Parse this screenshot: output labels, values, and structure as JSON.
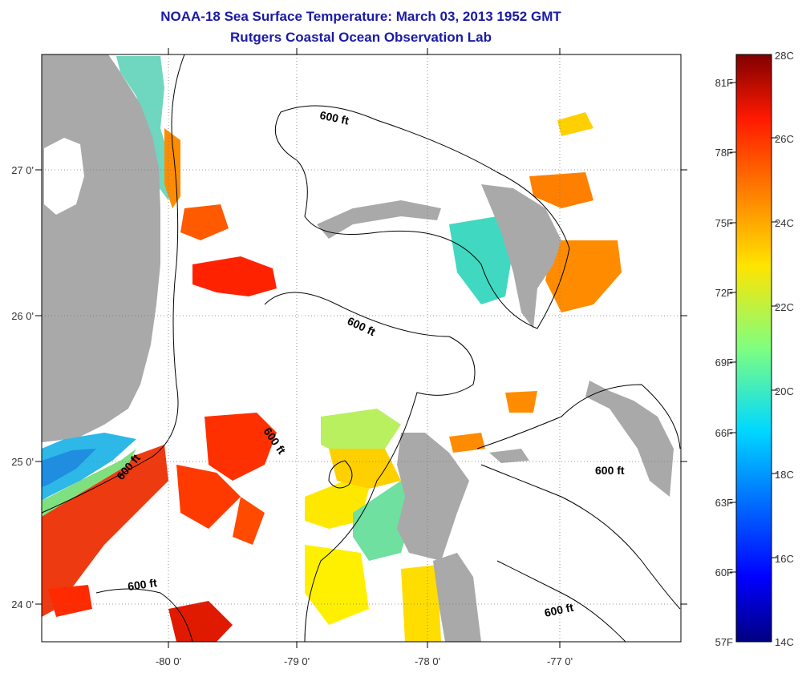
{
  "title": "NOAA-18 Sea Surface Temperature:  March 03, 2013 1952 GMT",
  "subtitle": "Rutgers Coastal Ocean Observation Lab",
  "map": {
    "lon_ticks": [
      "-80 0'",
      "-79 0'",
      "-78 0'",
      "-77 0'"
    ],
    "lat_ticks": [
      "27 0'",
      "26 0'",
      "25 0'",
      "24 0'"
    ],
    "contour_labels": [
      "600 ft",
      "600 ft",
      "600 ft",
      "600 ft",
      "600 ft",
      "600 ft"
    ]
  },
  "colorbar": {
    "celsius_labels": [
      "28C",
      "26C",
      "24C",
      "22C",
      "20C",
      "18C",
      "16C",
      "14C"
    ],
    "fahrenheit_labels": [
      "81F",
      "78F",
      "75F",
      "72F",
      "69F",
      "66F",
      "63F",
      "60F",
      "57F"
    ],
    "celsius_range": [
      14,
      28
    ],
    "colormap": "jet"
  },
  "colors": {
    "title": "#1a1aa6",
    "land": "#a9a9a9",
    "contour": "#000000"
  }
}
